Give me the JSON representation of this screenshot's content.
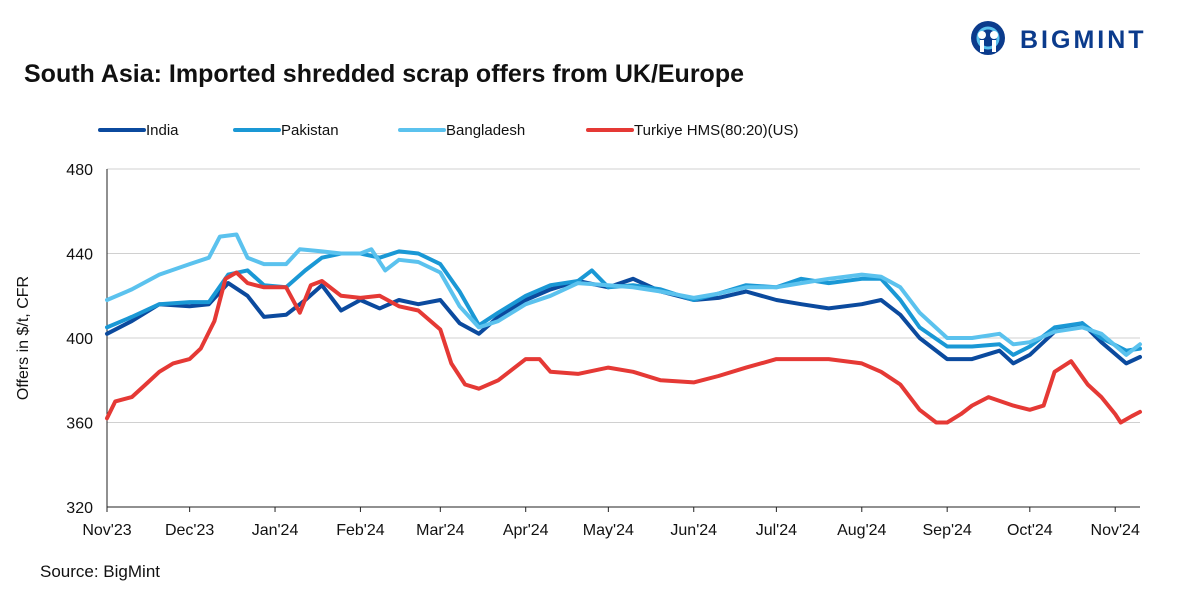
{
  "brand": {
    "name": "BIGMINT",
    "accent": "#0b3b8c"
  },
  "title": "South Asia: Imported shredded scrap offers from UK/Europe",
  "source": "Source: BigMint",
  "chart_data": {
    "type": "line",
    "ylabel": "Offers in $/t, CFR",
    "xlabel": "",
    "ylim": [
      320,
      480
    ],
    "yticks": [
      320,
      360,
      400,
      440,
      480
    ],
    "x_range": [
      "2023-11-01",
      "2024-11-10"
    ],
    "x_ticks": [
      "Nov'23",
      "Dec'23",
      "Jan'24",
      "Feb'24",
      "Mar'24",
      "Apr'24",
      "May'24",
      "Jun'24",
      "Jul'24",
      "Aug'24",
      "Sep'24",
      "Oct'24",
      "Nov'24"
    ],
    "grid": "horizontal",
    "legend_position": "top",
    "series": [
      {
        "name": "India",
        "color": "#0b4a9e",
        "points": [
          [
            "2023-11-01",
            402
          ],
          [
            "2023-11-10",
            408
          ],
          [
            "2023-11-20",
            416
          ],
          [
            "2023-12-01",
            415
          ],
          [
            "2023-12-08",
            416
          ],
          [
            "2023-12-15",
            426
          ],
          [
            "2023-12-22",
            420
          ],
          [
            "2023-12-28",
            410
          ],
          [
            "2024-01-05",
            411
          ],
          [
            "2024-01-12",
            418
          ],
          [
            "2024-01-18",
            425
          ],
          [
            "2024-01-25",
            413
          ],
          [
            "2024-02-01",
            418
          ],
          [
            "2024-02-08",
            414
          ],
          [
            "2024-02-15",
            418
          ],
          [
            "2024-02-22",
            416
          ],
          [
            "2024-03-01",
            418
          ],
          [
            "2024-03-08",
            407
          ],
          [
            "2024-03-15",
            402
          ],
          [
            "2024-03-22",
            410
          ],
          [
            "2024-04-01",
            418
          ],
          [
            "2024-04-10",
            423
          ],
          [
            "2024-04-20",
            427
          ],
          [
            "2024-05-01",
            424
          ],
          [
            "2024-05-10",
            428
          ],
          [
            "2024-05-20",
            422
          ],
          [
            "2024-06-01",
            418
          ],
          [
            "2024-06-10",
            419
          ],
          [
            "2024-06-20",
            422
          ],
          [
            "2024-07-01",
            418
          ],
          [
            "2024-07-10",
            416
          ],
          [
            "2024-07-20",
            414
          ],
          [
            "2024-08-01",
            416
          ],
          [
            "2024-08-08",
            418
          ],
          [
            "2024-08-15",
            411
          ],
          [
            "2024-08-22",
            400
          ],
          [
            "2024-09-01",
            390
          ],
          [
            "2024-09-10",
            390
          ],
          [
            "2024-09-20",
            394
          ],
          [
            "2024-09-25",
            388
          ],
          [
            "2024-10-01",
            392
          ],
          [
            "2024-10-10",
            403
          ],
          [
            "2024-10-20",
            407
          ],
          [
            "2024-10-27",
            398
          ],
          [
            "2024-11-05",
            388
          ],
          [
            "2024-11-10",
            391
          ]
        ]
      },
      {
        "name": "Pakistan",
        "color": "#1a98d5",
        "points": [
          [
            "2023-11-01",
            405
          ],
          [
            "2023-11-10",
            410
          ],
          [
            "2023-11-20",
            416
          ],
          [
            "2023-12-01",
            417
          ],
          [
            "2023-12-08",
            417
          ],
          [
            "2023-12-15",
            430
          ],
          [
            "2023-12-22",
            432
          ],
          [
            "2023-12-28",
            425
          ],
          [
            "2024-01-05",
            424
          ],
          [
            "2024-01-12",
            432
          ],
          [
            "2024-01-18",
            438
          ],
          [
            "2024-01-25",
            440
          ],
          [
            "2024-02-01",
            440
          ],
          [
            "2024-02-08",
            438
          ],
          [
            "2024-02-15",
            441
          ],
          [
            "2024-02-22",
            440
          ],
          [
            "2024-03-01",
            435
          ],
          [
            "2024-03-08",
            422
          ],
          [
            "2024-03-15",
            406
          ],
          [
            "2024-03-22",
            412
          ],
          [
            "2024-04-01",
            420
          ],
          [
            "2024-04-10",
            425
          ],
          [
            "2024-04-20",
            427
          ],
          [
            "2024-04-25",
            432
          ],
          [
            "2024-05-01",
            424
          ],
          [
            "2024-05-10",
            425
          ],
          [
            "2024-05-20",
            423
          ],
          [
            "2024-06-01",
            418
          ],
          [
            "2024-06-10",
            421
          ],
          [
            "2024-06-20",
            425
          ],
          [
            "2024-07-01",
            424
          ],
          [
            "2024-07-10",
            428
          ],
          [
            "2024-07-20",
            426
          ],
          [
            "2024-08-01",
            428
          ],
          [
            "2024-08-08",
            428
          ],
          [
            "2024-08-15",
            418
          ],
          [
            "2024-08-22",
            405
          ],
          [
            "2024-09-01",
            396
          ],
          [
            "2024-09-10",
            396
          ],
          [
            "2024-09-20",
            397
          ],
          [
            "2024-09-25",
            392
          ],
          [
            "2024-10-01",
            396
          ],
          [
            "2024-10-10",
            405
          ],
          [
            "2024-10-20",
            407
          ],
          [
            "2024-10-27",
            400
          ],
          [
            "2024-11-05",
            394
          ],
          [
            "2024-11-10",
            395
          ]
        ]
      },
      {
        "name": "Bangladesh",
        "color": "#5bc2ee",
        "points": [
          [
            "2023-11-01",
            418
          ],
          [
            "2023-11-10",
            423
          ],
          [
            "2023-11-20",
            430
          ],
          [
            "2023-12-01",
            435
          ],
          [
            "2023-12-08",
            438
          ],
          [
            "2023-12-12",
            448
          ],
          [
            "2023-12-18",
            449
          ],
          [
            "2023-12-22",
            438
          ],
          [
            "2023-12-28",
            435
          ],
          [
            "2024-01-05",
            435
          ],
          [
            "2024-01-10",
            442
          ],
          [
            "2024-01-18",
            441
          ],
          [
            "2024-01-25",
            440
          ],
          [
            "2024-02-01",
            440
          ],
          [
            "2024-02-05",
            442
          ],
          [
            "2024-02-10",
            432
          ],
          [
            "2024-02-15",
            437
          ],
          [
            "2024-02-22",
            436
          ],
          [
            "2024-03-01",
            431
          ],
          [
            "2024-03-08",
            415
          ],
          [
            "2024-03-15",
            405
          ],
          [
            "2024-03-22",
            408
          ],
          [
            "2024-04-01",
            416
          ],
          [
            "2024-04-10",
            420
          ],
          [
            "2024-04-20",
            426
          ],
          [
            "2024-05-01",
            425
          ],
          [
            "2024-05-10",
            424
          ],
          [
            "2024-05-20",
            422
          ],
          [
            "2024-06-01",
            419
          ],
          [
            "2024-06-10",
            421
          ],
          [
            "2024-06-20",
            424
          ],
          [
            "2024-07-01",
            424
          ],
          [
            "2024-07-10",
            426
          ],
          [
            "2024-07-20",
            428
          ],
          [
            "2024-08-01",
            430
          ],
          [
            "2024-08-08",
            429
          ],
          [
            "2024-08-15",
            424
          ],
          [
            "2024-08-22",
            412
          ],
          [
            "2024-09-01",
            400
          ],
          [
            "2024-09-10",
            400
          ],
          [
            "2024-09-20",
            402
          ],
          [
            "2024-09-25",
            397
          ],
          [
            "2024-10-01",
            398
          ],
          [
            "2024-10-10",
            403
          ],
          [
            "2024-10-20",
            405
          ],
          [
            "2024-10-27",
            402
          ],
          [
            "2024-11-05",
            392
          ],
          [
            "2024-11-10",
            397
          ]
        ]
      },
      {
        "name": "Turkiye HMS(80:20)(US)",
        "color": "#e53935",
        "points": [
          [
            "2023-11-01",
            362
          ],
          [
            "2023-11-04",
            370
          ],
          [
            "2023-11-10",
            372
          ],
          [
            "2023-11-15",
            378
          ],
          [
            "2023-11-20",
            384
          ],
          [
            "2023-11-25",
            388
          ],
          [
            "2023-12-01",
            390
          ],
          [
            "2023-12-05",
            395
          ],
          [
            "2023-12-10",
            408
          ],
          [
            "2023-12-14",
            428
          ],
          [
            "2023-12-18",
            431
          ],
          [
            "2023-12-22",
            426
          ],
          [
            "2023-12-28",
            424
          ],
          [
            "2024-01-05",
            424
          ],
          [
            "2024-01-10",
            412
          ],
          [
            "2024-01-14",
            425
          ],
          [
            "2024-01-18",
            427
          ],
          [
            "2024-01-25",
            420
          ],
          [
            "2024-02-01",
            419
          ],
          [
            "2024-02-08",
            420
          ],
          [
            "2024-02-15",
            415
          ],
          [
            "2024-02-22",
            413
          ],
          [
            "2024-03-01",
            404
          ],
          [
            "2024-03-05",
            388
          ],
          [
            "2024-03-10",
            378
          ],
          [
            "2024-03-15",
            376
          ],
          [
            "2024-03-22",
            380
          ],
          [
            "2024-04-01",
            390
          ],
          [
            "2024-04-06",
            390
          ],
          [
            "2024-04-10",
            384
          ],
          [
            "2024-04-20",
            383
          ],
          [
            "2024-05-01",
            386
          ],
          [
            "2024-05-10",
            384
          ],
          [
            "2024-05-20",
            380
          ],
          [
            "2024-06-01",
            379
          ],
          [
            "2024-06-10",
            382
          ],
          [
            "2024-06-20",
            386
          ],
          [
            "2024-07-01",
            390
          ],
          [
            "2024-07-10",
            390
          ],
          [
            "2024-07-20",
            390
          ],
          [
            "2024-08-01",
            388
          ],
          [
            "2024-08-08",
            384
          ],
          [
            "2024-08-15",
            378
          ],
          [
            "2024-08-22",
            366
          ],
          [
            "2024-08-28",
            360
          ],
          [
            "2024-09-01",
            360
          ],
          [
            "2024-09-06",
            364
          ],
          [
            "2024-09-10",
            368
          ],
          [
            "2024-09-16",
            372
          ],
          [
            "2024-09-25",
            368
          ],
          [
            "2024-10-01",
            366
          ],
          [
            "2024-10-06",
            368
          ],
          [
            "2024-10-10",
            384
          ],
          [
            "2024-10-16",
            389
          ],
          [
            "2024-10-22",
            378
          ],
          [
            "2024-10-27",
            372
          ],
          [
            "2024-11-01",
            364
          ],
          [
            "2024-11-03",
            360
          ],
          [
            "2024-11-07",
            363
          ],
          [
            "2024-11-10",
            365
          ]
        ]
      }
    ]
  }
}
